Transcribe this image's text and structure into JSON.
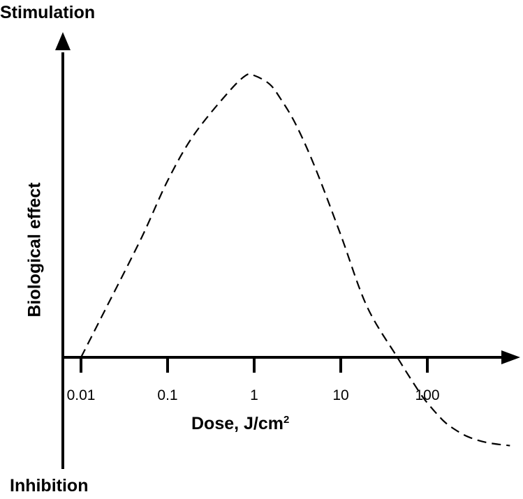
{
  "chart_data": {
    "type": "line",
    "x_scale": "log",
    "xlim": [
      0.0075,
      900
    ],
    "ylim": [
      -0.43,
      0.98
    ],
    "y_top_label": "Stimulation",
    "y_bottom_label": "Inhibition",
    "ylabel": "Biological effect",
    "xlabel": "Dose, J/cm",
    "xlabel_superscript": "2",
    "ticks": [
      {
        "value": 0.01,
        "label": "0.01"
      },
      {
        "value": 0.1,
        "label": "0.1"
      },
      {
        "value": 1,
        "label": "1"
      },
      {
        "value": 10,
        "label": "10"
      },
      {
        "value": 100,
        "label": "100"
      }
    ],
    "series": [
      {
        "line_style": "dashed",
        "color": "#000000",
        "x": [
          0.01,
          0.02,
          0.05,
          0.1,
          0.2,
          0.5,
          0.8,
          1.0,
          1.5,
          2,
          3,
          5,
          10,
          20,
          45,
          80,
          100,
          150,
          200,
          300,
          500,
          900
        ],
        "y": [
          0.0,
          0.18,
          0.42,
          0.62,
          0.78,
          0.93,
          0.99,
          0.99,
          0.96,
          0.91,
          0.82,
          0.67,
          0.43,
          0.18,
          0.0,
          -0.12,
          -0.16,
          -0.22,
          -0.25,
          -0.28,
          -0.3,
          -0.31
        ]
      }
    ],
    "grid": false,
    "legend": "none"
  }
}
